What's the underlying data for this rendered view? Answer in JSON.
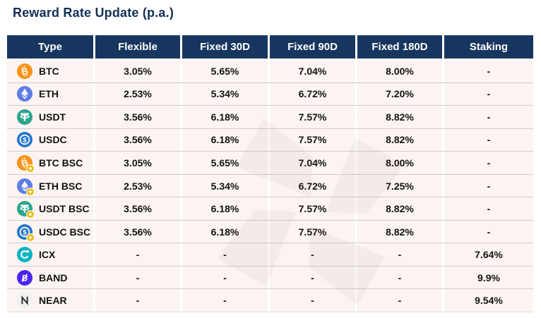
{
  "title": "Reward Rate Update (p.a.)",
  "colors": {
    "header_bg": "#17365f",
    "row_bg": "#fcf4f2",
    "title_text": "#132f57",
    "btc": "#f7931a",
    "eth": "#5d7ce8",
    "usdt": "#2ba48c",
    "usdc": "#2775ca",
    "bsc_badge": "#f0b90b",
    "icx": "#0db5c2",
    "band": "#4a23ee",
    "near_bg": "#f1f1f1",
    "near_glyph": "#2a2a2a"
  },
  "chart_data": {
    "type": "table",
    "title": "Reward Rate Update (p.a.)",
    "columns": [
      "Type",
      "Flexible",
      "Fixed 30D",
      "Fixed 90D",
      "Fixed 180D",
      "Staking"
    ],
    "rows": [
      {
        "asset": "BTC",
        "icon": "btc-icon",
        "bsc_badge": false,
        "values": [
          "3.05%",
          "5.65%",
          "7.04%",
          "8.00%",
          "-"
        ]
      },
      {
        "asset": "ETH",
        "icon": "eth-icon",
        "bsc_badge": false,
        "values": [
          "2.53%",
          "5.34%",
          "6.72%",
          "7.20%",
          "-"
        ]
      },
      {
        "asset": "USDT",
        "icon": "usdt-icon",
        "bsc_badge": false,
        "values": [
          "3.56%",
          "6.18%",
          "7.57%",
          "8.82%",
          "-"
        ]
      },
      {
        "asset": "USDC",
        "icon": "usdc-icon",
        "bsc_badge": false,
        "values": [
          "3.56%",
          "6.18%",
          "7.57%",
          "8.82%",
          "-"
        ]
      },
      {
        "asset": "BTC BSC",
        "icon": "btc-icon",
        "bsc_badge": true,
        "values": [
          "3.05%",
          "5.65%",
          "7.04%",
          "8.00%",
          "-"
        ]
      },
      {
        "asset": "ETH BSC",
        "icon": "eth-icon",
        "bsc_badge": true,
        "values": [
          "2.53%",
          "5.34%",
          "6.72%",
          "7.25%",
          "-"
        ]
      },
      {
        "asset": "USDT BSC",
        "icon": "usdt-icon",
        "bsc_badge": true,
        "values": [
          "3.56%",
          "6.18%",
          "7.57%",
          "8.82%",
          "-"
        ]
      },
      {
        "asset": "USDC BSC",
        "icon": "usdc-icon",
        "bsc_badge": true,
        "values": [
          "3.56%",
          "6.18%",
          "7.57%",
          "8.82%",
          "-"
        ]
      },
      {
        "asset": "ICX",
        "icon": "icx-icon",
        "bsc_badge": false,
        "values": [
          "-",
          "-",
          "-",
          "-",
          "7.64%"
        ]
      },
      {
        "asset": "BAND",
        "icon": "band-icon",
        "bsc_badge": false,
        "values": [
          "-",
          "-",
          "-",
          "-",
          "9.9%"
        ]
      },
      {
        "asset": "NEAR",
        "icon": "near-icon",
        "bsc_badge": false,
        "values": [
          "-",
          "-",
          "-",
          "-",
          "9.54%"
        ]
      }
    ]
  }
}
